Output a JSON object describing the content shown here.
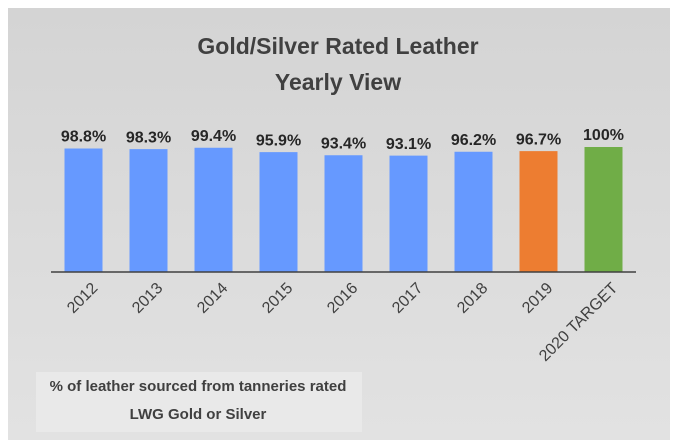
{
  "chart_data": {
    "type": "bar",
    "title": [
      "Gold/Silver Rated Leather",
      "Yearly View"
    ],
    "categories": [
      "2012",
      "2013",
      "2014",
      "2015",
      "2016",
      "2017",
      "2018",
      "2019",
      "2020 TARGET"
    ],
    "values": [
      98.8,
      98.3,
      99.4,
      95.9,
      93.4,
      93.1,
      96.2,
      96.7,
      100
    ],
    "value_labels": [
      "98.8%",
      "98.3%",
      "99.4%",
      "95.9%",
      "93.4%",
      "93.1%",
      "96.2%",
      "96.7%",
      "100%"
    ],
    "colors": [
      "#6699ff",
      "#6699ff",
      "#6699ff",
      "#6699ff",
      "#6699ff",
      "#6699ff",
      "#6699ff",
      "#ed7d31",
      "#70ad47"
    ],
    "ylim": [
      0,
      100
    ],
    "annotation": [
      "% of leather sourced from tanneries rated",
      "LWG Gold or Silver"
    ]
  }
}
